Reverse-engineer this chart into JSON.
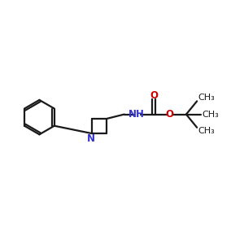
{
  "bg_color": "#ffffff",
  "bond_color": "#1a1a1a",
  "nitrogen_color": "#3333cc",
  "oxygen_color": "#cc0000",
  "line_width": 1.6,
  "font_size": 8.5,
  "fig_size": [
    3.0,
    3.0
  ],
  "dpi": 100,
  "xlim": [
    0,
    10
  ],
  "ylim": [
    0,
    10
  ]
}
